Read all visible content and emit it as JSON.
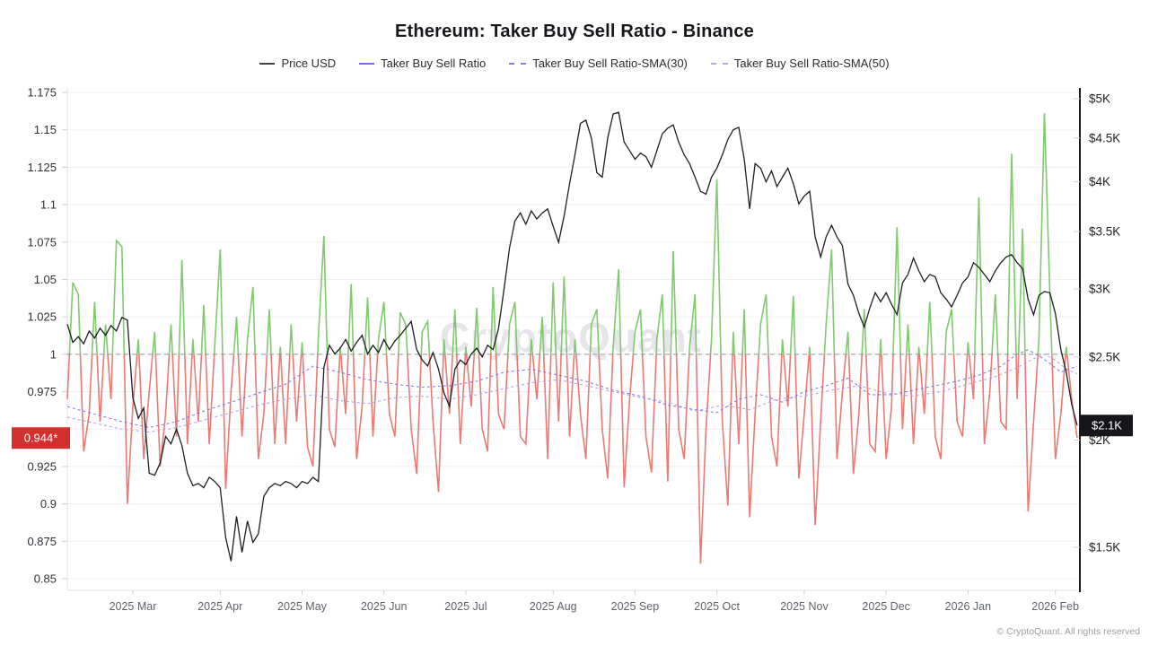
{
  "title": "Ethereum: Taker Buy Sell Ratio - Binance",
  "watermark": "CryptoQuant",
  "footer": "© CryptoQuant. All rights reserved",
  "legend": [
    {
      "label": "Price USD",
      "color": "#3f3f46",
      "style": "solid"
    },
    {
      "label": "Taker Buy Sell Ratio",
      "color": "#7b68ee",
      "style": "solid"
    },
    {
      "label": "Taker Buy Sell Ratio-SMA(30)",
      "color": "#8d7ce8",
      "style": "dashed"
    },
    {
      "label": "Taker Buy Sell Ratio-SMA(50)",
      "color": "#b3a7f2",
      "style": "dashed"
    }
  ],
  "colors": {
    "ratio_up": "#6abf53",
    "ratio_down": "#e8625c",
    "price": "#1f1f23",
    "sma30": "#7b6fe6",
    "sma50": "#a89bf0",
    "baseline_dash": "#a8a8b2",
    "gridline": "#f0f0f3",
    "axis_light": "#e3e3e8",
    "tick_mark": "#cfcfd6",
    "right_axis_line": "#1a1a1a",
    "left_label": "#303036",
    "right_label": "#232327",
    "x_label": "#5f6368",
    "watermark": "#e6e6ea",
    "badge_left_bg": "#d32f2f",
    "badge_right_bg": "#16161a",
    "badge_text": "#ffffff"
  },
  "chart_data": {
    "type": "line",
    "title": "Ethereum: Taker Buy Sell Ratio - Binance",
    "x_unit": "time, ~2-day samples from 2025 Feb to 2026 Feb",
    "legend_position": "top-center",
    "grid": true,
    "x_ticks": [
      {
        "label": "2025 Mar",
        "i": 12
      },
      {
        "label": "2025 Apr",
        "i": 28
      },
      {
        "label": "2025 May",
        "i": 43
      },
      {
        "label": "2025 Jun",
        "i": 58
      },
      {
        "label": "2025 Jul",
        "i": 73
      },
      {
        "label": "2025 Aug",
        "i": 89
      },
      {
        "label": "2025 Sep",
        "i": 104
      },
      {
        "label": "2025 Oct",
        "i": 119
      },
      {
        "label": "2025 Nov",
        "i": 135
      },
      {
        "label": "2025 Dec",
        "i": 150
      },
      {
        "label": "2026 Jan",
        "i": 165
      },
      {
        "label": "2026 Feb",
        "i": 181
      }
    ],
    "left_axis": {
      "name": "Taker Buy Sell Ratio",
      "scale": "linear",
      "range": [
        0.85,
        1.175
      ],
      "ticks": [
        {
          "v": 1.175,
          "label": "1.175"
        },
        {
          "v": 1.15,
          "label": "1.15"
        },
        {
          "v": 1.125,
          "label": "1.125"
        },
        {
          "v": 1.1,
          "label": "1.1"
        },
        {
          "v": 1.075,
          "label": "1.075"
        },
        {
          "v": 1.05,
          "label": "1.05"
        },
        {
          "v": 1.025,
          "label": "1.025"
        },
        {
          "v": 1.0,
          "label": "1"
        },
        {
          "v": 0.975,
          "label": "0.975"
        },
        {
          "v": 0.925,
          "label": "0.925"
        },
        {
          "v": 0.9,
          "label": "0.9"
        },
        {
          "v": 0.875,
          "label": "0.875"
        },
        {
          "v": 0.85,
          "label": "0.85"
        }
      ],
      "grid_values": [
        1.175,
        1.15,
        1.125,
        1.1,
        1.075,
        1.05,
        1.025,
        1.0,
        0.975,
        0.95,
        0.925,
        0.9,
        0.875,
        0.85
      ],
      "baseline": 1.0,
      "last_value": 0.944,
      "last_value_label": "0.944*"
    },
    "right_axis": {
      "name": "Price USD",
      "scale": "log",
      "range": [
        1500,
        5000
      ],
      "ticks": [
        {
          "v": 5000,
          "label": "$5K"
        },
        {
          "v": 4500,
          "label": "$4.5K"
        },
        {
          "v": 4000,
          "label": "$4K"
        },
        {
          "v": 3500,
          "label": "$3.5K"
        },
        {
          "v": 3000,
          "label": "$3K"
        },
        {
          "v": 2500,
          "label": "$2.5K"
        },
        {
          "v": 2000,
          "label": "$2K"
        },
        {
          "v": 1500,
          "label": "$1.5K"
        }
      ],
      "last_value": 2080,
      "last_value_label": "$2.1K"
    },
    "series": [
      {
        "name": "Taker Buy Sell Ratio",
        "axis": "left",
        "style": "solid, green above 1.0 / red below 1.0",
        "values": [
          0.97,
          1.048,
          1.04,
          0.935,
          0.96,
          1.035,
          0.955,
          1.02,
          0.97,
          1.076,
          1.072,
          0.9,
          0.965,
          1.01,
          0.93,
          0.975,
          1.015,
          0.925,
          0.96,
          1.02,
          0.945,
          1.063,
          0.94,
          1.01,
          0.955,
          1.033,
          0.94,
          1.005,
          1.07,
          0.91,
          0.975,
          1.025,
          0.945,
          1.01,
          1.045,
          0.93,
          0.96,
          1.03,
          0.94,
          1.005,
          0.94,
          1.02,
          0.955,
          1.008,
          0.938,
          0.925,
          1.012,
          1.079,
          0.95,
          0.938,
          1.005,
          0.96,
          1.047,
          0.93,
          0.965,
          1.038,
          0.945,
          1.01,
          1.035,
          0.96,
          0.945,
          1.028,
          1.02,
          0.95,
          0.92,
          1.015,
          1.022,
          0.955,
          0.908,
          1.01,
          0.96,
          1.03,
          0.94,
          1.005,
          0.965,
          1.031,
          0.95,
          0.935,
          1.045,
          0.96,
          0.95,
          1.02,
          1.035,
          0.945,
          0.94,
          1.01,
          0.97,
          1.025,
          0.93,
          1.048,
          0.955,
          1.052,
          0.945,
          1.01,
          0.96,
          0.93,
          1.02,
          1.03,
          0.95,
          0.917,
          1.005,
          1.057,
          0.911,
          0.97,
          1.015,
          1.03,
          0.945,
          0.921,
          1.01,
          1.04,
          0.915,
          1.069,
          0.95,
          0.93,
          1.005,
          1.04,
          0.86,
          0.95,
          1.01,
          1.117,
          0.955,
          0.899,
          1.015,
          0.94,
          1.03,
          0.891,
          0.96,
          1.02,
          1.04,
          0.945,
          0.925,
          1.01,
          0.965,
          1.039,
          0.917,
          0.96,
          1.005,
          0.886,
          0.955,
          1.02,
          1.07,
          0.93,
          0.975,
          1.015,
          0.92,
          0.96,
          1.03,
          0.94,
          0.935,
          1.01,
          0.93,
          0.965,
          1.085,
          0.95,
          1.02,
          0.94,
          1.005,
          0.96,
          1.035,
          0.945,
          0.93,
          1.015,
          1.03,
          0.955,
          0.945,
          1.008,
          0.97,
          1.105,
          0.94,
          0.975,
          1.04,
          0.955,
          0.95,
          1.134,
          0.97,
          1.084,
          0.895,
          0.955,
          1.01,
          1.161,
          1.04,
          0.93,
          0.96,
          1.005,
          0.97,
          0.944
        ]
      },
      {
        "name": "Price USD",
        "axis": "right",
        "style": "solid black",
        "values": [
          2730,
          2600,
          2640,
          2590,
          2680,
          2630,
          2700,
          2650,
          2720,
          2680,
          2780,
          2760,
          2240,
          2120,
          2180,
          1830,
          1820,
          1880,
          2020,
          1980,
          2060,
          1970,
          1830,
          1770,
          1780,
          1760,
          1810,
          1790,
          1760,
          1540,
          1445,
          1630,
          1480,
          1610,
          1520,
          1555,
          1720,
          1760,
          1780,
          1770,
          1790,
          1780,
          1760,
          1790,
          1780,
          1810,
          1790,
          2430,
          2580,
          2520,
          2560,
          2620,
          2540,
          2600,
          2650,
          2520,
          2580,
          2530,
          2620,
          2550,
          2610,
          2650,
          2700,
          2750,
          2550,
          2480,
          2440,
          2530,
          2420,
          2270,
          2190,
          2420,
          2480,
          2450,
          2520,
          2560,
          2500,
          2580,
          2550,
          2700,
          3000,
          3350,
          3600,
          3680,
          3570,
          3700,
          3620,
          3680,
          3720,
          3550,
          3400,
          3650,
          3980,
          4300,
          4680,
          4720,
          4500,
          4100,
          4050,
          4500,
          4800,
          4820,
          4450,
          4350,
          4250,
          4320,
          4280,
          4160,
          4350,
          4550,
          4620,
          4660,
          4450,
          4300,
          4200,
          4050,
          3900,
          3870,
          4050,
          4150,
          4300,
          4480,
          4600,
          4630,
          4250,
          3720,
          4200,
          4150,
          4000,
          4120,
          3950,
          4050,
          4150,
          3980,
          3770,
          3850,
          3900,
          3450,
          3270,
          3450,
          3560,
          3450,
          3370,
          3040,
          2950,
          2810,
          2710,
          2850,
          2970,
          2900,
          2970,
          2880,
          2800,
          3050,
          3120,
          3260,
          3150,
          3060,
          3120,
          3100,
          2970,
          2920,
          2860,
          2950,
          3050,
          3100,
          3220,
          3180,
          3120,
          3060,
          3150,
          3220,
          3270,
          3290,
          3220,
          3170,
          2920,
          2800,
          2950,
          2980,
          2970,
          2810,
          2550,
          2400,
          2200,
          2080
        ]
      },
      {
        "name": "Taker Buy Sell Ratio-SMA(30)",
        "axis": "left",
        "style": "dashed purple",
        "keypoints": [
          [
            0,
            0.965
          ],
          [
            5,
            0.96
          ],
          [
            10,
            0.955
          ],
          [
            15,
            0.951
          ],
          [
            20,
            0.955
          ],
          [
            25,
            0.962
          ],
          [
            30,
            0.968
          ],
          [
            35,
            0.974
          ],
          [
            40,
            0.98
          ],
          [
            45,
            0.992
          ],
          [
            50,
            0.988
          ],
          [
            55,
            0.983
          ],
          [
            60,
            0.98
          ],
          [
            65,
            0.978
          ],
          [
            70,
            0.979
          ],
          [
            75,
            0.982
          ],
          [
            80,
            0.988
          ],
          [
            85,
            0.99
          ],
          [
            90,
            0.986
          ],
          [
            95,
            0.982
          ],
          [
            100,
            0.976
          ],
          [
            105,
            0.972
          ],
          [
            110,
            0.966
          ],
          [
            115,
            0.963
          ],
          [
            119,
            0.961
          ],
          [
            123,
            0.97
          ],
          [
            127,
            0.973
          ],
          [
            131,
            0.968
          ],
          [
            135,
            0.975
          ],
          [
            139,
            0.979
          ],
          [
            143,
            0.984
          ],
          [
            147,
            0.973
          ],
          [
            151,
            0.973
          ],
          [
            155,
            0.976
          ],
          [
            159,
            0.979
          ],
          [
            163,
            0.982
          ],
          [
            167,
            0.986
          ],
          [
            171,
            0.992
          ],
          [
            174,
            1.0
          ],
          [
            176,
            1.003
          ],
          [
            178,
            0.999
          ],
          [
            180,
            0.994
          ],
          [
            182,
            0.988
          ],
          [
            185,
            0.992
          ]
        ]
      },
      {
        "name": "Taker Buy Sell Ratio-SMA(50)",
        "axis": "left",
        "style": "dashed light purple",
        "keypoints": [
          [
            0,
            0.958
          ],
          [
            5,
            0.954
          ],
          [
            10,
            0.95
          ],
          [
            15,
            0.948
          ],
          [
            20,
            0.951
          ],
          [
            25,
            0.956
          ],
          [
            30,
            0.961
          ],
          [
            35,
            0.966
          ],
          [
            40,
            0.97
          ],
          [
            45,
            0.973
          ],
          [
            50,
            0.969
          ],
          [
            55,
            0.967
          ],
          [
            60,
            0.971
          ],
          [
            65,
            0.972
          ],
          [
            70,
            0.97
          ],
          [
            75,
            0.973
          ],
          [
            80,
            0.977
          ],
          [
            85,
            0.981
          ],
          [
            90,
            0.983
          ],
          [
            95,
            0.979
          ],
          [
            100,
            0.975
          ],
          [
            105,
            0.971
          ],
          [
            110,
            0.968
          ],
          [
            115,
            0.962
          ],
          [
            120,
            0.966
          ],
          [
            125,
            0.963
          ],
          [
            130,
            0.97
          ],
          [
            135,
            0.972
          ],
          [
            140,
            0.976
          ],
          [
            145,
            0.979
          ],
          [
            150,
            0.974
          ],
          [
            155,
            0.972
          ],
          [
            160,
            0.975
          ],
          [
            165,
            0.98
          ],
          [
            170,
            0.985
          ],
          [
            174,
            0.991
          ],
          [
            177,
            0.997
          ],
          [
            179,
            1.0
          ],
          [
            181,
            0.996
          ],
          [
            183,
            0.99
          ],
          [
            185,
            0.987
          ]
        ]
      }
    ]
  }
}
